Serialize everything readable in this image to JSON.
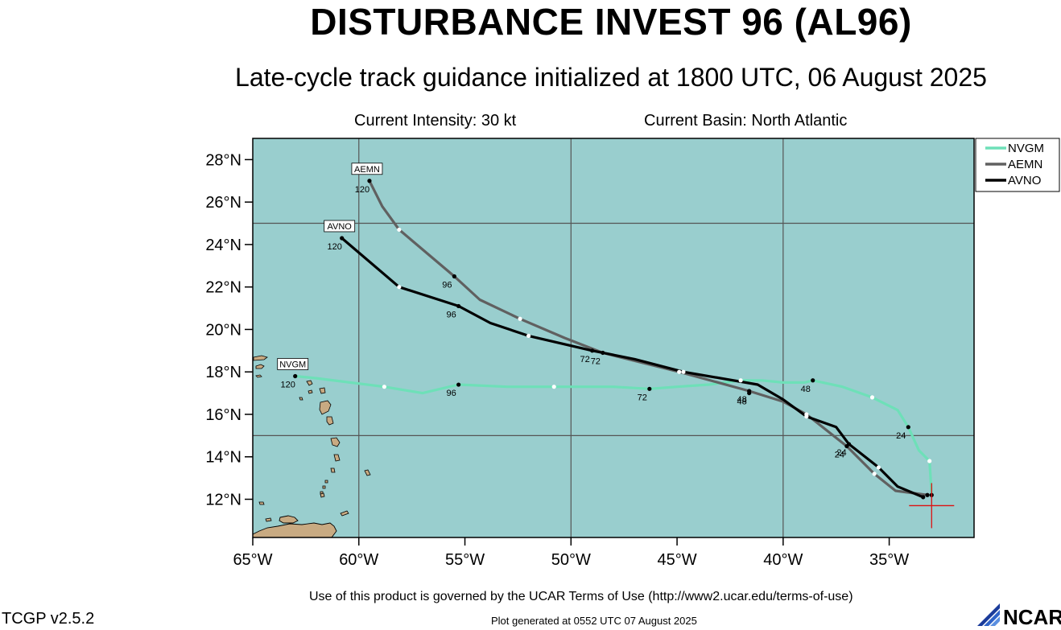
{
  "header": {
    "title": "DISTURBANCE INVEST 96 (AL96)",
    "subtitle": "Late-cycle track guidance initialized at 1800 UTC, 06 August 2025",
    "intensity": "Current Intensity: 30 kt",
    "basin": "Current Basin: North Atlantic"
  },
  "footer": {
    "terms": "Use of this product is governed by the UCAR Terms of Use (http://www2.ucar.edu/terms-of-use)",
    "version": "TCGP v2.5.2",
    "generated": "Plot generated at 0552 UTC   07 August 2025",
    "logo_text": "NCAR"
  },
  "chart_data": {
    "type": "map",
    "xlim": [
      -65,
      -31
    ],
    "ylim": [
      10.2,
      29
    ],
    "xticks": [
      {
        "value": -65,
        "label": "65°W"
      },
      {
        "value": -60,
        "label": "60°W"
      },
      {
        "value": -55,
        "label": "55°W"
      },
      {
        "value": -50,
        "label": "50°W"
      },
      {
        "value": -45,
        "label": "45°W"
      },
      {
        "value": -40,
        "label": "40°W"
      },
      {
        "value": -35,
        "label": "35°W"
      }
    ],
    "yticks": [
      {
        "value": 12,
        "label": "12°N"
      },
      {
        "value": 14,
        "label": "14°N"
      },
      {
        "value": 16,
        "label": "16°N"
      },
      {
        "value": 18,
        "label": "18°N"
      },
      {
        "value": 20,
        "label": "20°N"
      },
      {
        "value": 22,
        "label": "22°N"
      },
      {
        "value": 24,
        "label": "24°N"
      },
      {
        "value": 26,
        "label": "26°N"
      },
      {
        "value": 28,
        "label": "28°N"
      }
    ],
    "gridlines_lon": [
      -60,
      -50,
      -40
    ],
    "gridlines_lat": [
      15,
      25
    ],
    "colors": {
      "ocean": "#99cece",
      "land": "#c8aa82",
      "grid": "#555555",
      "current_position": "#dd1111"
    },
    "current_position": {
      "lon": -33.0,
      "lat": 11.7
    },
    "legend": {
      "placement": "top-right",
      "entries": [
        "NVGM",
        "AEMN",
        "AVNO"
      ]
    },
    "series": [
      {
        "name": "NVGM",
        "color": "#6ee0b8",
        "track": [
          [
            -33.0,
            12.2
          ],
          [
            -33.1,
            13.8
          ],
          [
            -33.6,
            14.3
          ],
          [
            -34.1,
            15.4
          ],
          [
            -34.6,
            16.2
          ],
          [
            -35.8,
            16.8
          ],
          [
            -37.2,
            17.3
          ],
          [
            -38.6,
            17.6
          ],
          [
            -39.0,
            17.5
          ],
          [
            -40.0,
            17.5
          ],
          [
            -41.0,
            17.6
          ],
          [
            -42.0,
            17.6
          ],
          [
            -43.5,
            17.4
          ],
          [
            -45.0,
            17.3
          ],
          [
            -46.3,
            17.2
          ],
          [
            -48.0,
            17.3
          ],
          [
            -50.8,
            17.3
          ],
          [
            -53.0,
            17.3
          ],
          [
            -55.3,
            17.4
          ],
          [
            -57.0,
            17.0
          ],
          [
            -58.8,
            17.3
          ],
          [
            -62.0,
            17.7
          ],
          [
            -63.0,
            17.8
          ]
        ],
        "markers": [
          {
            "lon": -33.0,
            "lat": 12.2,
            "fill": "#000000",
            "label": ""
          },
          {
            "lon": -33.1,
            "lat": 13.8,
            "fill": "#ffffff",
            "label": ""
          },
          {
            "lon": -34.1,
            "lat": 15.4,
            "fill": "#000000",
            "label": "24"
          },
          {
            "lon": -35.8,
            "lat": 16.8,
            "fill": "#ffffff",
            "label": ""
          },
          {
            "lon": -38.6,
            "lat": 17.6,
            "fill": "#000000",
            "label": "48"
          },
          {
            "lon": -42.0,
            "lat": 17.6,
            "fill": "#ffffff",
            "label": ""
          },
          {
            "lon": -46.3,
            "lat": 17.2,
            "fill": "#000000",
            "label": "72"
          },
          {
            "lon": -50.8,
            "lat": 17.3,
            "fill": "#ffffff",
            "label": ""
          },
          {
            "lon": -55.3,
            "lat": 17.4,
            "fill": "#000000",
            "label": "96"
          },
          {
            "lon": -58.8,
            "lat": 17.3,
            "fill": "#ffffff",
            "label": ""
          },
          {
            "lon": -63.0,
            "lat": 17.8,
            "fill": "#000000",
            "label": "120"
          }
        ],
        "end_label": "NVGM"
      },
      {
        "name": "AEMN",
        "color": "#606060",
        "track": [
          [
            -33.2,
            12.2
          ],
          [
            -34.7,
            12.4
          ],
          [
            -35.7,
            13.2
          ],
          [
            -37.0,
            14.5
          ],
          [
            -38.9,
            16.0
          ],
          [
            -40.0,
            16.6
          ],
          [
            -41.6,
            17.1
          ],
          [
            -44.9,
            18.0
          ],
          [
            -48.5,
            18.9
          ],
          [
            -50.3,
            19.6
          ],
          [
            -52.4,
            20.5
          ],
          [
            -54.3,
            21.4
          ],
          [
            -55.5,
            22.5
          ],
          [
            -58.1,
            24.7
          ],
          [
            -58.9,
            25.8
          ],
          [
            -59.5,
            27.0
          ]
        ],
        "markers": [
          {
            "lon": -33.2,
            "lat": 12.2,
            "fill": "#000000",
            "label": ""
          },
          {
            "lon": -35.7,
            "lat": 13.2,
            "fill": "#ffffff",
            "label": ""
          },
          {
            "lon": -37.0,
            "lat": 14.5,
            "fill": "#000000",
            "label": "24"
          },
          {
            "lon": -38.9,
            "lat": 16.0,
            "fill": "#ffffff",
            "label": ""
          },
          {
            "lon": -41.6,
            "lat": 17.1,
            "fill": "#000000",
            "label": "48"
          },
          {
            "lon": -44.9,
            "lat": 18.0,
            "fill": "#ffffff",
            "label": ""
          },
          {
            "lon": -48.5,
            "lat": 18.9,
            "fill": "#000000",
            "label": "72"
          },
          {
            "lon": -52.4,
            "lat": 20.5,
            "fill": "#ffffff",
            "label": ""
          },
          {
            "lon": -55.5,
            "lat": 22.5,
            "fill": "#000000",
            "label": "96"
          },
          {
            "lon": -58.1,
            "lat": 24.7,
            "fill": "#ffffff",
            "label": ""
          },
          {
            "lon": -59.5,
            "lat": 27.0,
            "fill": "#000000",
            "label": "120"
          }
        ],
        "end_label": "AEMN"
      },
      {
        "name": "AVNO",
        "color": "#000000",
        "track": [
          [
            -33.4,
            12.1
          ],
          [
            -34.6,
            12.6
          ],
          [
            -35.5,
            13.5
          ],
          [
            -36.9,
            14.6
          ],
          [
            -37.5,
            15.4
          ],
          [
            -38.9,
            15.9
          ],
          [
            -40.0,
            16.7
          ],
          [
            -41.2,
            17.4
          ],
          [
            -44.7,
            18.0
          ],
          [
            -47.0,
            18.6
          ],
          [
            -49.0,
            19.0
          ],
          [
            -52.0,
            19.7
          ],
          [
            -53.8,
            20.3
          ],
          [
            -55.3,
            21.1
          ],
          [
            -58.1,
            22.0
          ],
          [
            -60.8,
            24.3
          ]
        ],
        "markers": [
          {
            "lon": -33.4,
            "lat": 12.1,
            "fill": "#000000",
            "label": ""
          },
          {
            "lon": -35.5,
            "lat": 13.5,
            "fill": "#ffffff",
            "label": ""
          },
          {
            "lon": -36.9,
            "lat": 14.6,
            "fill": "#000000",
            "label": "24"
          },
          {
            "lon": -38.9,
            "lat": 15.9,
            "fill": "#ffffff",
            "label": ""
          },
          {
            "lon": -41.6,
            "lat": 17.0,
            "fill": "#000000",
            "label": "48"
          },
          {
            "lon": -44.7,
            "lat": 18.0,
            "fill": "#ffffff",
            "label": ""
          },
          {
            "lon": -49.0,
            "lat": 19.0,
            "fill": "#000000",
            "label": "72"
          },
          {
            "lon": -52.0,
            "lat": 19.7,
            "fill": "#ffffff",
            "label": ""
          },
          {
            "lon": -55.3,
            "lat": 21.1,
            "fill": "#000000",
            "label": "96"
          },
          {
            "lon": -58.1,
            "lat": 22.0,
            "fill": "#ffffff",
            "label": ""
          },
          {
            "lon": -60.8,
            "lat": 24.3,
            "fill": "#000000",
            "label": "120"
          }
        ],
        "end_label": "AVNO"
      }
    ]
  }
}
